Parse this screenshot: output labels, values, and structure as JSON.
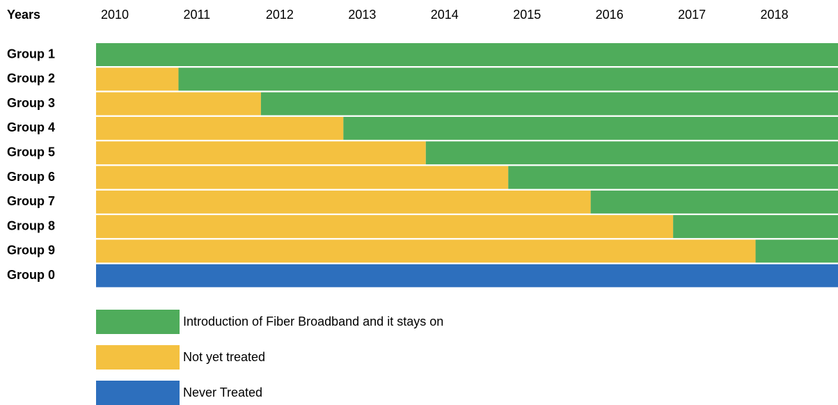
{
  "chart_data": {
    "type": "stacked-bar-horizontal",
    "xlabel": "Years",
    "years": [
      "2010",
      "2011",
      "2012",
      "2013",
      "2014",
      "2015",
      "2016",
      "2017",
      "2018"
    ],
    "categories": [
      "Group 1",
      "Group 2",
      "Group 3",
      "Group 4",
      "Group 5",
      "Group 6",
      "Group 7",
      "Group 8",
      "Group 9",
      "Group 0"
    ],
    "xlim": [
      0,
      9
    ],
    "series": [
      {
        "name": "Introduction of Fiber Broadband and it stays on",
        "color": "#4fac5b",
        "values": [
          9,
          8,
          7,
          6,
          5,
          4,
          3,
          2,
          1,
          0
        ]
      },
      {
        "name": "Not yet treated",
        "color": "#f4c140",
        "values": [
          0,
          1,
          2,
          3,
          4,
          5,
          6,
          7,
          8,
          0
        ]
      },
      {
        "name": "Never Treated",
        "color": "#2d6fbd",
        "values": [
          0,
          0,
          0,
          0,
          0,
          0,
          0,
          0,
          0,
          9
        ]
      }
    ]
  }
}
